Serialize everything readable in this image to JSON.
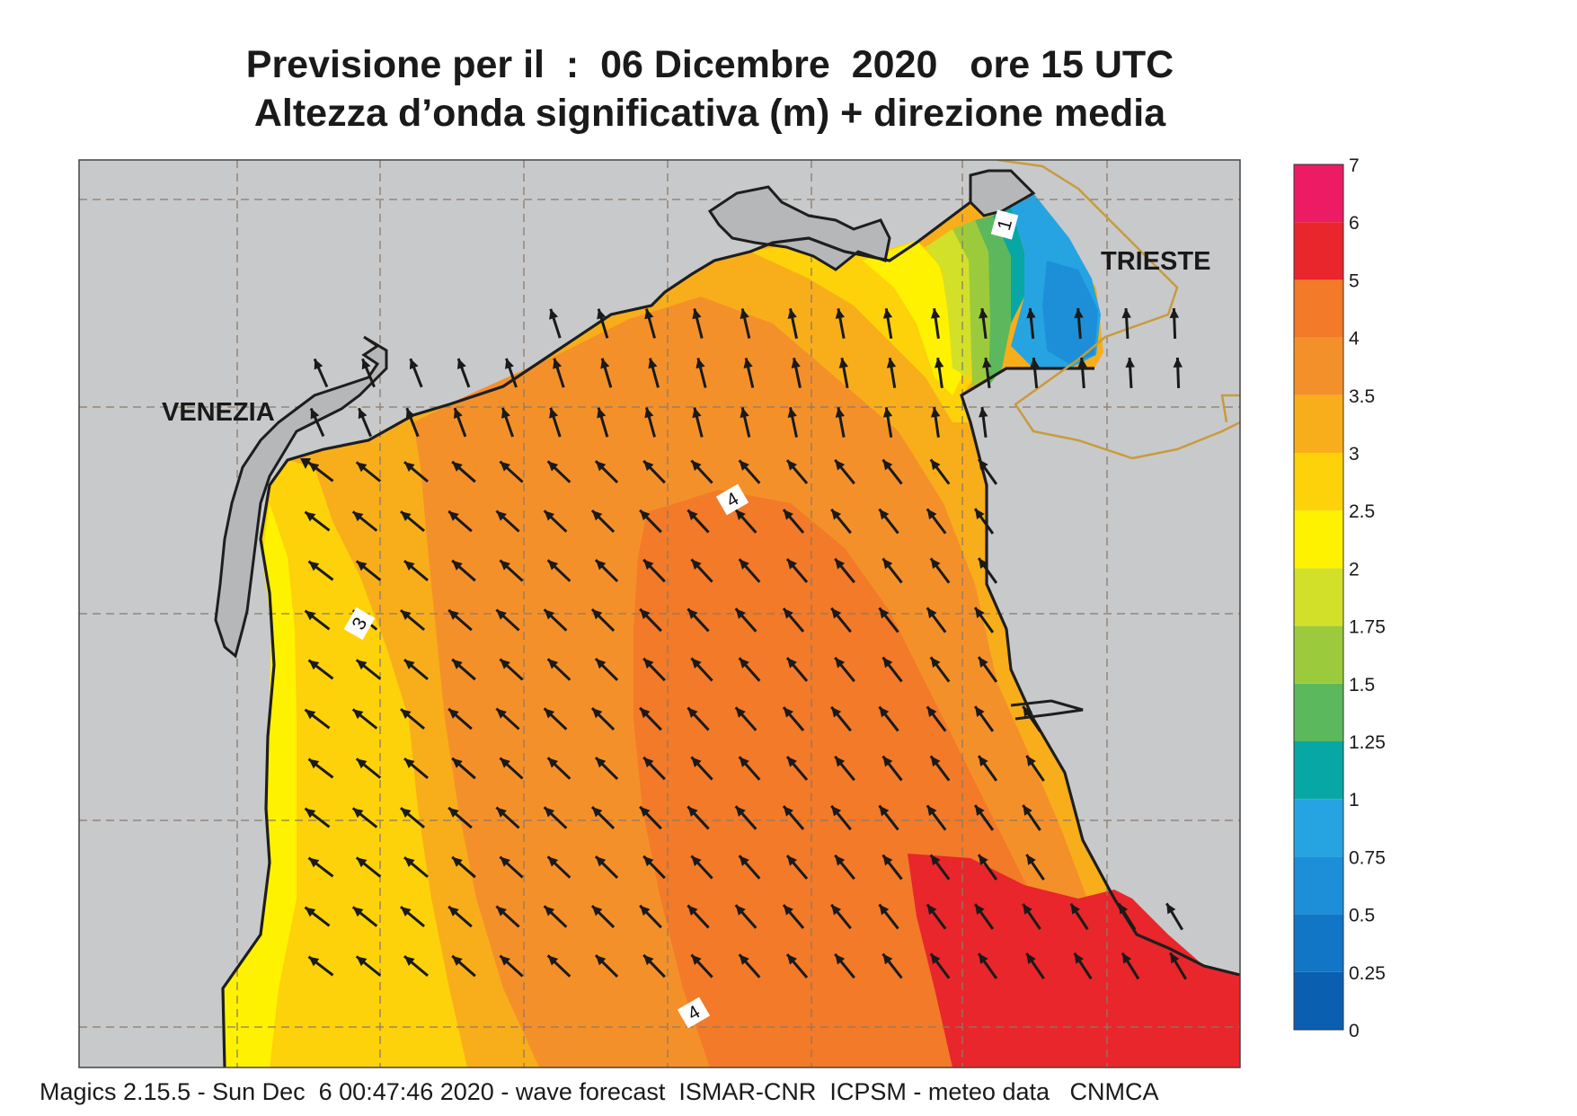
{
  "title": {
    "line1": "Previsione per il  :  06 Dicembre  2020   ore 15 UTC",
    "line2": "Altezza d’onda significativa (m) + direzione media"
  },
  "map": {
    "cities": [
      {
        "name": "VENEZIA"
      },
      {
        "name": "TRIESTE"
      }
    ],
    "contour_labels": [
      "1",
      "3",
      "4",
      "4"
    ],
    "arrow_direction": "toward-northwest",
    "colors": {
      "land": "#c8c9cb",
      "coast": "#1e1e1e",
      "border": "#c89b3c",
      "arrow": "#1a1a1a",
      "grid": "#8a7a6a"
    }
  },
  "colorbar": {
    "levels": [
      "0",
      "0.25",
      "0.5",
      "0.75",
      "1",
      "1.25",
      "1.5",
      "1.75",
      "2",
      "2.5",
      "3",
      "3.5",
      "4",
      "5",
      "6",
      "7"
    ],
    "colors": [
      "#0a5fb0",
      "#1176c6",
      "#1c8fd8",
      "#26a4e2",
      "#07a7a5",
      "#5cb85c",
      "#9bcb3c",
      "#d3e02a",
      "#fff200",
      "#fdd20a",
      "#f8ae1a",
      "#f4902a",
      "#f27a28",
      "#e8262b",
      "#ec1b64"
    ]
  },
  "footer": {
    "text": "Magics 2.15.5 - Sun Dec  6 00:47:46 2020 - wave forecast  ISMAR-CNR  ICPSM - meteo data   CNMCA"
  }
}
